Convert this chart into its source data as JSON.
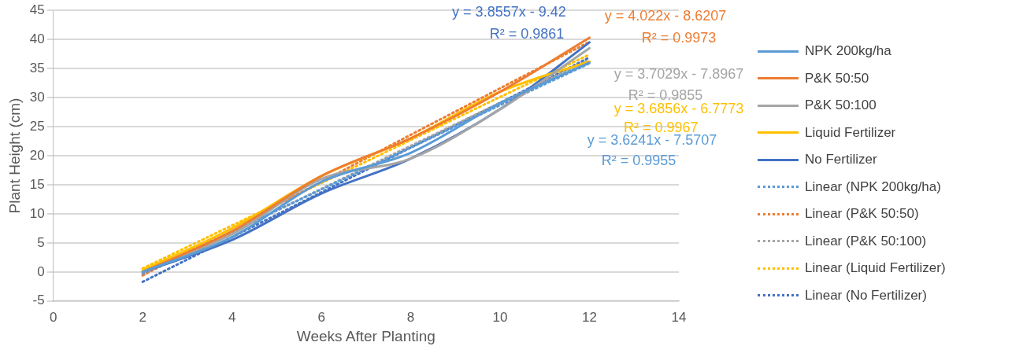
{
  "chart_data": {
    "type": "line",
    "xlabel": "Weeks After Planting",
    "ylabel": "Plant Height (cm)",
    "x": [
      2,
      4,
      6,
      8,
      10,
      12
    ],
    "series": [
      {
        "name": "NPK 200kg/ha",
        "color": "#5b9bd5",
        "values": [
          0,
          6,
          15.5,
          20.5,
          29,
          36
        ]
      },
      {
        "name": "P&K 50:50",
        "color": "#ed7d31",
        "values": [
          0,
          7,
          16.5,
          23,
          31,
          40.3
        ]
      },
      {
        "name": "P&K 50:100",
        "color": "#a5a5a5",
        "values": [
          0,
          6.5,
          16,
          19.5,
          28,
          38.5
        ]
      },
      {
        "name": "Liquid Fertilizer",
        "color": "#ffc000",
        "values": [
          0.3,
          7.5,
          16.5,
          23,
          31,
          36.2
        ]
      },
      {
        "name": "No Fertilizer",
        "color": "#4472c4",
        "values": [
          0,
          5.5,
          13.5,
          19.5,
          28,
          39.5
        ]
      },
      {
        "name": "Linear (NPK 200kg/ha)",
        "color": "#5b9bd5",
        "type": "line",
        "line_style": "dotted",
        "values": [
          -0.3,
          6.9,
          14.2,
          21.4,
          28.7,
          35.9
        ]
      },
      {
        "name": "Linear (P&K 50:50)",
        "color": "#ed7d31",
        "type": "line",
        "line_style": "dotted",
        "values": [
          -0.6,
          7.5,
          15.5,
          23.6,
          31.6,
          39.6
        ]
      },
      {
        "name": "Linear (P&K 50:100)",
        "color": "#a5a5a5",
        "type": "line",
        "line_style": "dotted",
        "values": [
          -0.5,
          6.9,
          14.3,
          21.7,
          29.1,
          36.5
        ]
      },
      {
        "name": "Linear (Liquid Fertilizer)",
        "color": "#ffc000",
        "type": "line",
        "line_style": "dotted",
        "values": [
          0.6,
          8,
          15.3,
          22.7,
          30.1,
          37.4
        ]
      },
      {
        "name": "Linear (No Fertilizer)",
        "color": "#4472c4",
        "type": "line",
        "line_style": "dotted",
        "values": [
          -1.7,
          6,
          13.7,
          21.4,
          29.1,
          36.9
        ]
      }
    ],
    "annotations": [
      "y = 3.6241x - 7.5707",
      "R² = 0.9955",
      "y = 4.022x - 8.6207",
      "R² = 0.9973",
      "y = 3.7029x - 7.8967",
      "R² = 0.9855",
      "y = 3.6856x - 6.7773",
      "R² = 0.9967",
      "y = 3.8557x - 9.42",
      "R² = 0.9861"
    ],
    "xlim": [
      0,
      14
    ],
    "xticks": [
      0,
      2,
      4,
      6,
      8,
      10,
      12,
      14
    ],
    "ylim": [
      -5,
      45
    ],
    "yticks": [
      -5,
      0,
      5,
      10,
      15,
      20,
      25,
      30,
      35,
      40,
      45
    ],
    "grid": "y",
    "legend": "right",
    "marker": "none",
    "line_style": "solid"
  }
}
